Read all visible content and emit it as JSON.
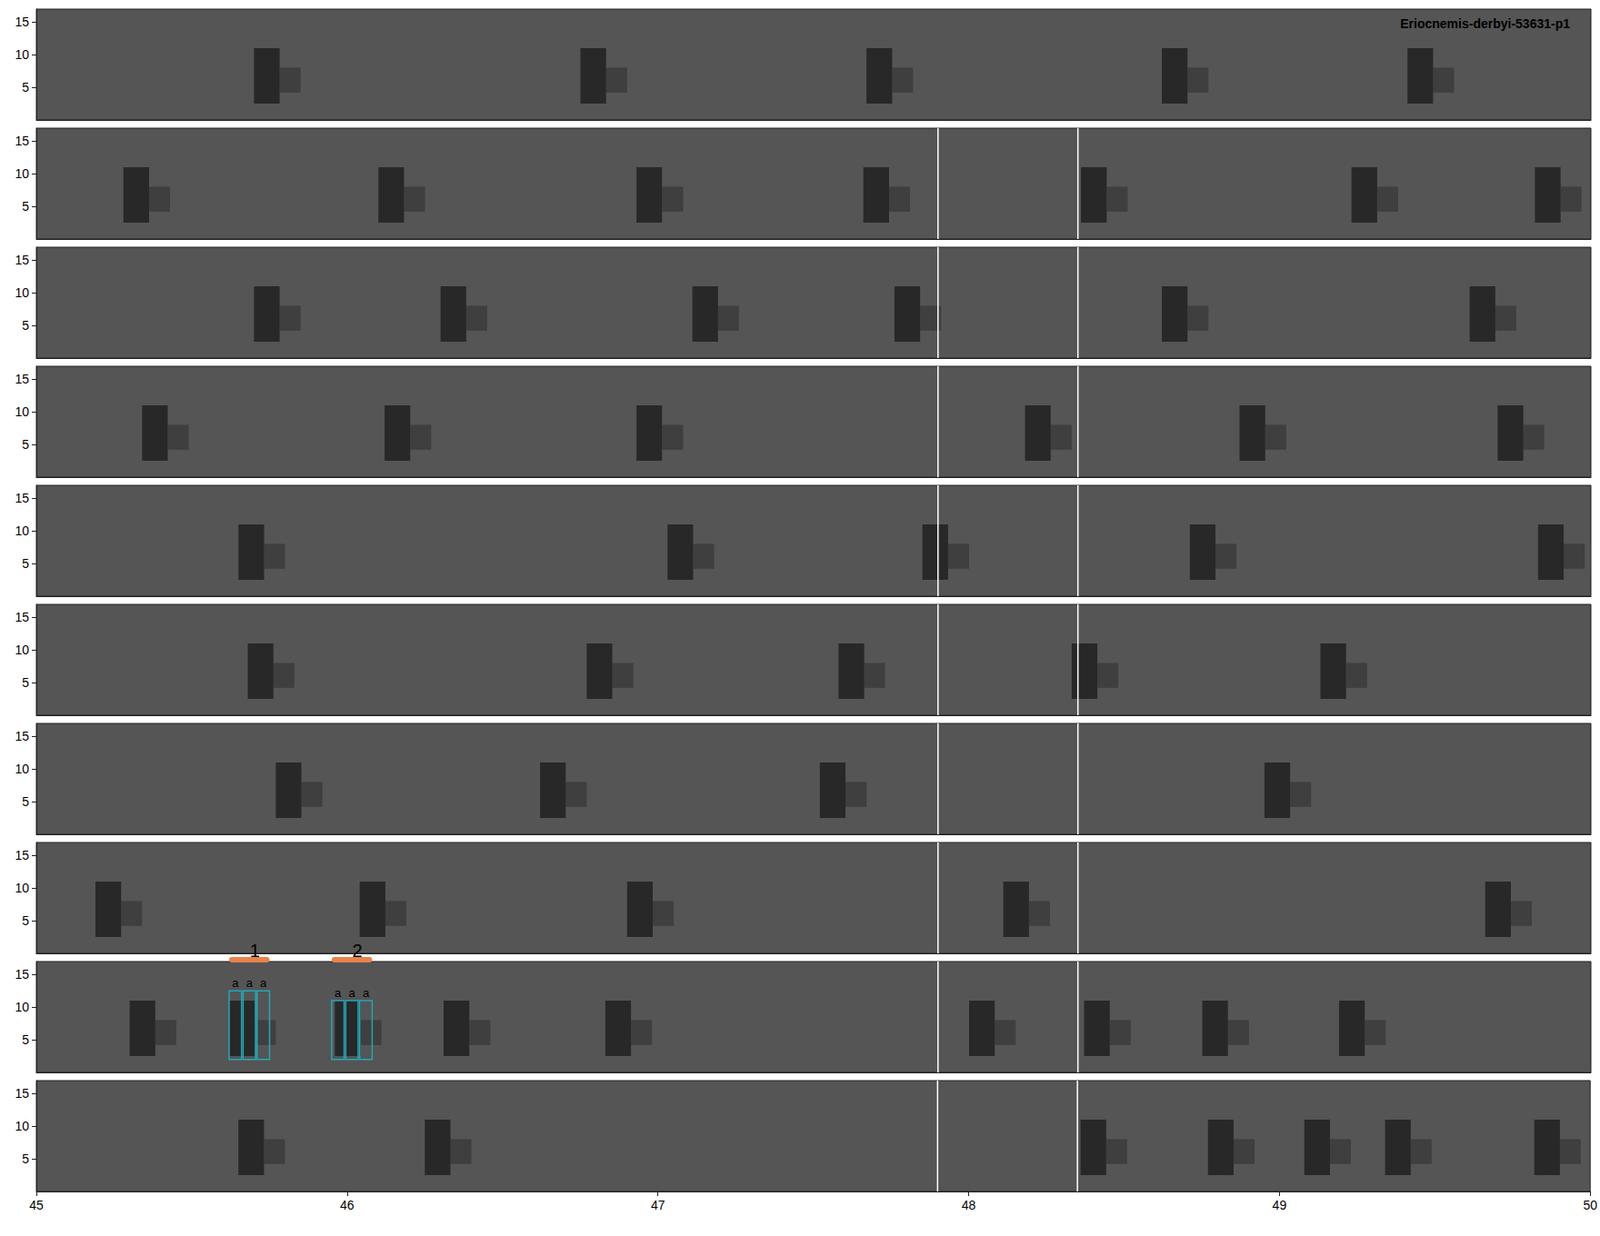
{
  "chart_data": {
    "type": "spectrogram",
    "title": "Eriocnemis-derbyi-53631-p1",
    "xlim": [
      45,
      50
    ],
    "xticks": [
      45,
      46,
      47,
      48,
      49,
      50
    ],
    "ylim": [
      0,
      17
    ],
    "yticks": [
      5,
      10,
      15
    ],
    "call_band": [
      2.5,
      11
    ],
    "panels": [
      {
        "calls": [
          [
            45.7,
            45.85
          ],
          [
            46.75,
            46.9
          ],
          [
            47.67,
            47.82
          ],
          [
            48.62,
            48.77
          ],
          [
            49.41,
            49.56
          ]
        ],
        "boundaries": []
      },
      {
        "calls": [
          [
            45.28,
            45.43
          ],
          [
            46.1,
            46.25
          ],
          [
            46.93,
            47.08
          ],
          [
            47.66,
            47.81
          ],
          [
            48.36,
            48.51
          ],
          [
            49.23,
            49.38
          ],
          [
            49.82,
            49.97
          ]
        ],
        "boundaries": [
          47.9,
          48.35
        ]
      },
      {
        "calls": [
          [
            45.7,
            45.85
          ],
          [
            46.3,
            46.45
          ],
          [
            47.11,
            47.26
          ],
          [
            47.76,
            47.91
          ],
          [
            48.62,
            48.77
          ],
          [
            49.61,
            49.76
          ]
        ],
        "boundaries": [
          47.9,
          48.35
        ]
      },
      {
        "calls": [
          [
            45.34,
            45.49
          ],
          [
            46.12,
            46.27
          ],
          [
            46.93,
            47.08
          ],
          [
            48.18,
            48.33
          ],
          [
            48.87,
            49.02
          ],
          [
            49.7,
            49.85
          ]
        ],
        "boundaries": [
          47.9,
          48.35
        ]
      },
      {
        "calls": [
          [
            45.65,
            45.8
          ],
          [
            47.03,
            47.18
          ],
          [
            47.85,
            48.0
          ],
          [
            48.71,
            48.86
          ],
          [
            49.83,
            49.98
          ]
        ],
        "boundaries": [
          47.9,
          48.35
        ]
      },
      {
        "calls": [
          [
            45.68,
            45.83
          ],
          [
            46.77,
            46.92
          ],
          [
            47.58,
            47.73
          ],
          [
            48.33,
            48.48
          ],
          [
            49.13,
            49.28
          ]
        ],
        "boundaries": [
          47.9,
          48.35
        ]
      },
      {
        "calls": [
          [
            45.77,
            45.92
          ],
          [
            46.62,
            46.77
          ],
          [
            47.52,
            47.67
          ],
          [
            48.95,
            49.1
          ]
        ],
        "boundaries": [
          47.9,
          48.35
        ]
      },
      {
        "calls": [
          [
            45.19,
            45.34
          ],
          [
            46.04,
            46.19
          ],
          [
            46.9,
            47.05
          ],
          [
            48.11,
            48.26
          ],
          [
            49.66,
            49.81
          ]
        ],
        "boundaries": [
          47.9,
          48.35
        ]
      },
      {
        "calls": [
          [
            45.3,
            45.45
          ],
          [
            45.62,
            45.77
          ],
          [
            45.96,
            46.11
          ],
          [
            46.31,
            46.46
          ],
          [
            46.83,
            46.98
          ],
          [
            48.0,
            48.15
          ],
          [
            48.37,
            48.52
          ],
          [
            48.75,
            48.9
          ],
          [
            49.19,
            49.34
          ]
        ],
        "boundaries": [
          47.9,
          48.35
        ],
        "annotations": [
          {
            "label": "1",
            "syllables": [
              {
                "label": "a",
                "start": 45.62,
                "end": 45.66,
                "fmin": 2,
                "fmax": 12.5
              },
              {
                "label": "a",
                "start": 45.665,
                "end": 45.705,
                "fmin": 2,
                "fmax": 12.5
              },
              {
                "label": "a",
                "start": 45.71,
                "end": 45.75,
                "fmin": 2,
                "fmax": 12.5
              }
            ]
          },
          {
            "label": "2",
            "syllables": [
              {
                "label": "a",
                "start": 45.95,
                "end": 45.99,
                "fmin": 2,
                "fmax": 11
              },
              {
                "label": "a",
                "start": 45.995,
                "end": 46.035,
                "fmin": 2,
                "fmax": 11
              },
              {
                "label": "a",
                "start": 46.04,
                "end": 46.08,
                "fmin": 2,
                "fmax": 11
              }
            ]
          }
        ]
      },
      {
        "calls": [
          [
            45.65,
            45.8
          ],
          [
            46.25,
            46.4
          ],
          [
            48.36,
            48.51
          ],
          [
            48.77,
            48.92
          ],
          [
            49.08,
            49.23
          ],
          [
            49.34,
            49.49
          ],
          [
            49.82,
            49.97
          ]
        ],
        "boundaries": [
          47.9,
          48.35
        ]
      }
    ]
  }
}
